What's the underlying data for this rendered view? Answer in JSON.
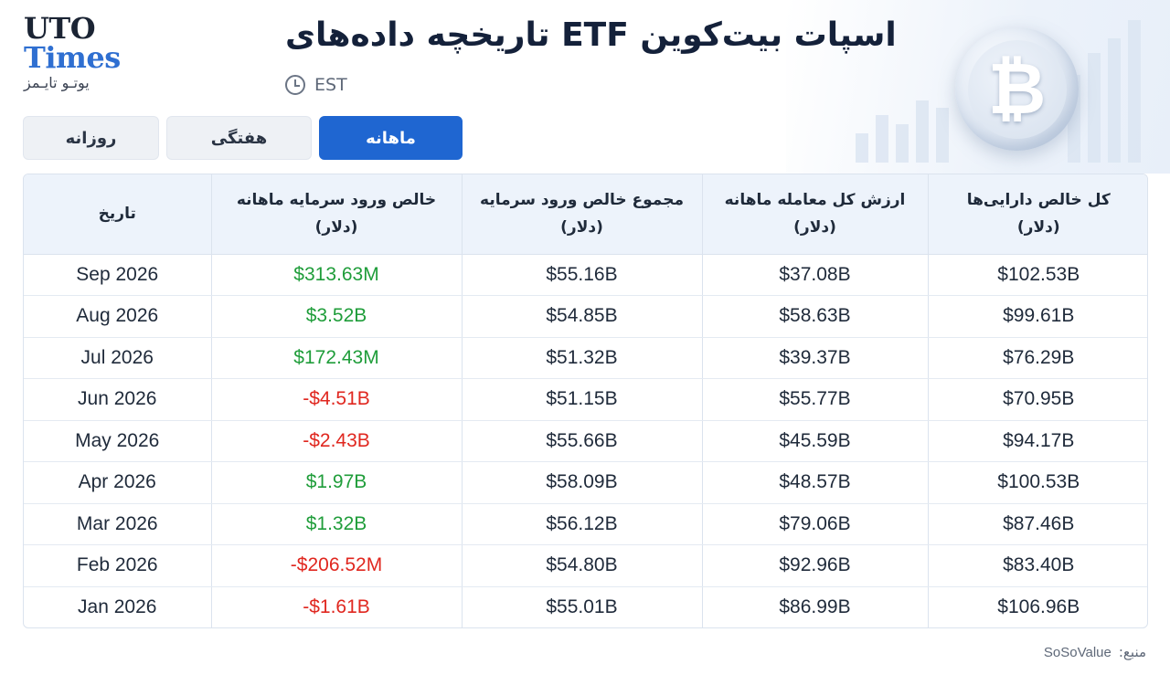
{
  "logo": {
    "line1": "UTO",
    "line2": "Times",
    "line3": "یوتـو تایـمز"
  },
  "header": {
    "title": "تاریخچه داده‌های ETF اسپات بیت‌کوین",
    "timezone": "EST"
  },
  "tabs": [
    {
      "label": "روزانه",
      "active": false
    },
    {
      "label": "هفتگی",
      "active": false
    },
    {
      "label": "ماهانه",
      "active": true
    }
  ],
  "table": {
    "headers": [
      {
        "title": "کل خالص دارایی‌ها",
        "unit": "(دلار)"
      },
      {
        "title": "ارزش کل معامله ماهانه",
        "unit": "(دلار)"
      },
      {
        "title": "مجموع خالص ورود سرمایه",
        "unit": "(دلار)"
      },
      {
        "title": "خالص ورود سرمایه ماهانه",
        "unit": "(دلار)"
      },
      {
        "title": "تاریخ",
        "unit": ""
      }
    ],
    "rows": [
      {
        "date": "Sep 2026",
        "net_inflow": "$313.63M",
        "cum_inflow": "$55.16B",
        "trade_value": "$37.08B",
        "net_assets": "$102.53B"
      },
      {
        "date": "Aug 2026",
        "net_inflow": "$3.52B",
        "cum_inflow": "$54.85B",
        "trade_value": "$58.63B",
        "net_assets": "$99.61B"
      },
      {
        "date": "Jul 2026",
        "net_inflow": "$172.43M",
        "cum_inflow": "$51.32B",
        "trade_value": "$39.37B",
        "net_assets": "$76.29B"
      },
      {
        "date": "Jun 2026",
        "net_inflow": "-$4.51B",
        "cum_inflow": "$51.15B",
        "trade_value": "$55.77B",
        "net_assets": "$70.95B"
      },
      {
        "date": "May 2026",
        "net_inflow": "-$2.43B",
        "cum_inflow": "$55.66B",
        "trade_value": "$45.59B",
        "net_assets": "$94.17B"
      },
      {
        "date": "Apr 2026",
        "net_inflow": "$1.97B",
        "cum_inflow": "$58.09B",
        "trade_value": "$48.57B",
        "net_assets": "$100.53B"
      },
      {
        "date": "Mar 2026",
        "net_inflow": "$1.32B",
        "cum_inflow": "$56.12B",
        "trade_value": "$79.06B",
        "net_assets": "$87.46B"
      },
      {
        "date": "Feb 2026",
        "net_inflow": "-$206.52M",
        "cum_inflow": "$54.80B",
        "trade_value": "$92.96B",
        "net_assets": "$83.40B"
      },
      {
        "date": "Jan 2026",
        "net_inflow": "-$1.61B",
        "cum_inflow": "$55.01B",
        "trade_value": "$86.99B",
        "net_assets": "$106.96B"
      }
    ]
  },
  "source": {
    "label": "منبع:",
    "value": "SoSoValue"
  },
  "colors": {
    "accent": "#1f66d1",
    "positive": "#1f9d3a",
    "negative": "#e0271f"
  },
  "icons": {
    "clock": "clock-icon",
    "bitcoin": "bitcoin-coin-icon"
  }
}
